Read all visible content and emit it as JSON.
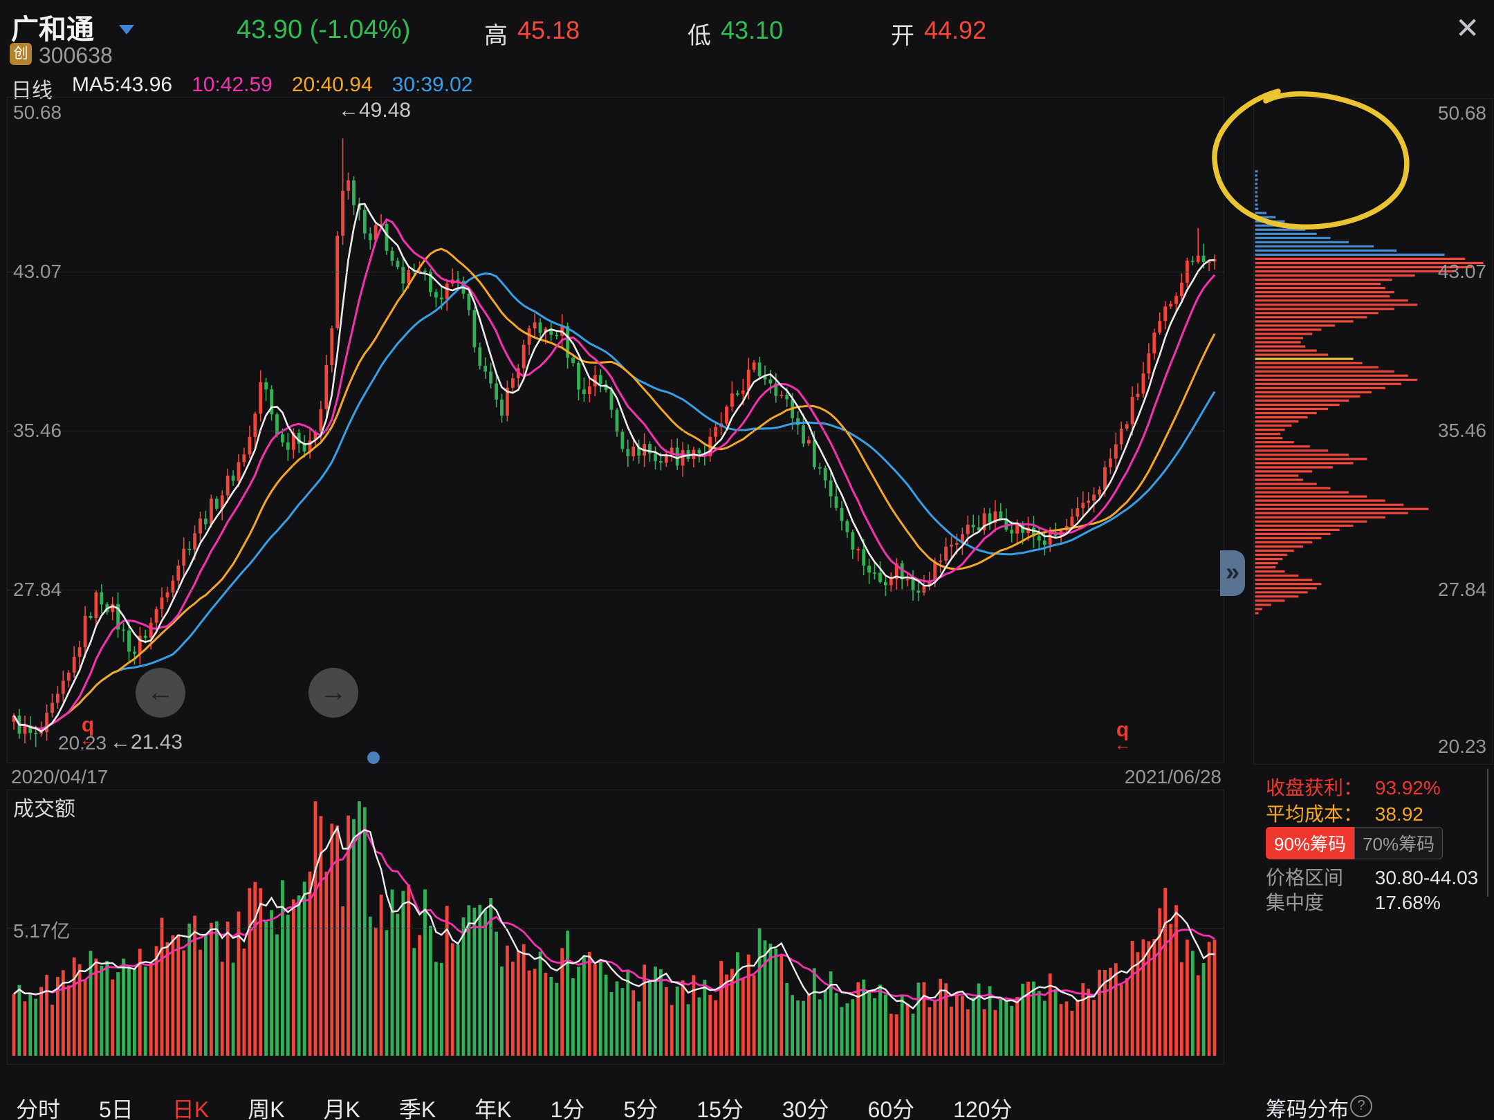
{
  "header": {
    "name": "广和通",
    "market_badge": "创",
    "code": "300638",
    "price": "43.90 (-1.04%)",
    "high_label": "高",
    "high": "45.18",
    "low_label": "低",
    "low": "43.10",
    "open_label": "开",
    "open": "44.92",
    "close_icon": "✕"
  },
  "legend": {
    "period": "日线",
    "ma5": "MA5:43.96",
    "ma10": "10:42.59",
    "ma20": "20:40.94",
    "ma30": "30:39.02"
  },
  "dates": {
    "start": "2020/04/17",
    "end": "2021/06/28"
  },
  "annotations": {
    "peak": "←49.48",
    "start_price": "←21.43",
    "zoom_q": "q",
    "zoom_arrow": "←",
    "nav_left": "←",
    "nav_right": "→",
    "expand": "»"
  },
  "volume_pane": {
    "title": "成交额",
    "gridline_label": "5.17亿"
  },
  "right_stats": {
    "profit_label": "收盘获利：",
    "profit": "93.92%",
    "cost_label": "平均成本：",
    "cost": "38.92",
    "badge90": "90%筹码",
    "badge70": "70%筹码",
    "range_label": "价格区间",
    "range": "30.80-44.03",
    "concentration_label": "集中度",
    "concentration": "17.68%",
    "panel_title": "筹码分布",
    "help": "?"
  },
  "tabs": {
    "items": [
      "分时",
      "5日",
      "日K",
      "周K",
      "月K",
      "季K",
      "年K",
      "1分",
      "5分",
      "15分",
      "30分",
      "60分",
      "120分"
    ],
    "active_index": 2
  },
  "chart_data": {
    "type": "candlestick+volume+chip-distribution",
    "colors": {
      "up": "#f4453a",
      "down": "#31b057",
      "ma5": "#ececec",
      "ma10": "#f531b0",
      "ma20": "#f5a623",
      "ma30": "#35a0e8",
      "chip_red": "#f4473c",
      "chip_blue": "#4a8cd0",
      "chip_yellow": "#e8c238",
      "annotation_yellow": "#eac431"
    },
    "kline": {
      "y_ticks": [
        "50.68",
        "43.07",
        "35.46",
        "27.84",
        "20.23"
      ],
      "ylim": [
        20.23,
        50.68
      ],
      "gridline_values": [
        43.07,
        35.46,
        27.84
      ],
      "num_candles": 220,
      "price_anchors": [
        [
          0,
          21.5
        ],
        [
          0.012,
          20.9
        ],
        [
          0.02,
          20.6
        ],
        [
          0.03,
          21.8
        ],
        [
          0.045,
          23.5
        ],
        [
          0.06,
          26.3
        ],
        [
          0.07,
          27.6
        ],
        [
          0.08,
          27.0
        ],
        [
          0.09,
          25.8
        ],
        [
          0.1,
          24.8
        ],
        [
          0.115,
          26.3
        ],
        [
          0.13,
          28.4
        ],
        [
          0.15,
          30.6
        ],
        [
          0.17,
          32.2
        ],
        [
          0.185,
          33.6
        ],
        [
          0.197,
          35.2
        ],
        [
          0.207,
          38.0
        ],
        [
          0.215,
          36.2
        ],
        [
          0.225,
          34.6
        ],
        [
          0.235,
          35.6
        ],
        [
          0.245,
          34.2
        ],
        [
          0.255,
          36.6
        ],
        [
          0.265,
          40.5
        ],
        [
          0.272,
          46.8
        ],
        [
          0.279,
          47.3
        ],
        [
          0.287,
          45.9
        ],
        [
          0.295,
          44.2
        ],
        [
          0.305,
          45.4
        ],
        [
          0.315,
          43.6
        ],
        [
          0.325,
          42.2
        ],
        [
          0.335,
          43.8
        ],
        [
          0.345,
          42.6
        ],
        [
          0.355,
          41.2
        ],
        [
          0.365,
          42.9
        ],
        [
          0.375,
          41.6
        ],
        [
          0.385,
          39.6
        ],
        [
          0.395,
          37.6
        ],
        [
          0.405,
          36.4
        ],
        [
          0.415,
          37.9
        ],
        [
          0.425,
          39.4
        ],
        [
          0.435,
          40.7
        ],
        [
          0.445,
          39.9
        ],
        [
          0.455,
          40.4
        ],
        [
          0.465,
          38.6
        ],
        [
          0.475,
          37.1
        ],
        [
          0.485,
          38.4
        ],
        [
          0.495,
          36.9
        ],
        [
          0.505,
          35.1
        ],
        [
          0.515,
          34.3
        ],
        [
          0.525,
          34.8
        ],
        [
          0.535,
          33.9
        ],
        [
          0.545,
          34.5
        ],
        [
          0.555,
          34.1
        ],
        [
          0.565,
          34.7
        ],
        [
          0.575,
          34.3
        ],
        [
          0.585,
          35.4
        ],
        [
          0.6,
          37.0
        ],
        [
          0.615,
          38.4
        ],
        [
          0.63,
          38.0
        ],
        [
          0.645,
          36.6
        ],
        [
          0.66,
          34.9
        ],
        [
          0.675,
          33.2
        ],
        [
          0.69,
          31.2
        ],
        [
          0.705,
          29.4
        ],
        [
          0.72,
          28.2
        ],
        [
          0.735,
          28.9
        ],
        [
          0.75,
          27.8
        ],
        [
          0.765,
          28.8
        ],
        [
          0.78,
          30.0
        ],
        [
          0.8,
          31.0
        ],
        [
          0.82,
          31.3
        ],
        [
          0.84,
          30.7
        ],
        [
          0.86,
          30.1
        ],
        [
          0.875,
          30.7
        ],
        [
          0.89,
          31.6
        ],
        [
          0.905,
          33.0
        ],
        [
          0.92,
          35.0
        ],
        [
          0.935,
          37.2
        ],
        [
          0.95,
          39.8
        ],
        [
          0.962,
          41.6
        ],
        [
          0.974,
          43.0
        ],
        [
          0.985,
          44.3
        ],
        [
          0.993,
          43.3
        ],
        [
          1,
          43.9
        ]
      ],
      "spikes": [
        [
          0.272,
          49.48
        ],
        [
          0.985,
          45.18
        ]
      ],
      "dips": [
        [
          0.02,
          20.28
        ],
        [
          0.75,
          27.3
        ]
      ]
    },
    "volume": {
      "anchors": [
        [
          0,
          0.3
        ],
        [
          0.02,
          0.24
        ],
        [
          0.04,
          0.28
        ],
        [
          0.06,
          0.35
        ],
        [
          0.08,
          0.3
        ],
        [
          0.1,
          0.44
        ],
        [
          0.12,
          0.5
        ],
        [
          0.14,
          0.42
        ],
        [
          0.16,
          0.5
        ],
        [
          0.18,
          0.46
        ],
        [
          0.2,
          0.55
        ],
        [
          0.22,
          0.52
        ],
        [
          0.235,
          0.62
        ],
        [
          0.25,
          0.92
        ],
        [
          0.265,
          0.72
        ],
        [
          0.285,
          0.9
        ],
        [
          0.3,
          0.62
        ],
        [
          0.315,
          0.68
        ],
        [
          0.33,
          0.55
        ],
        [
          0.36,
          0.46
        ],
        [
          0.39,
          0.5
        ],
        [
          0.42,
          0.44
        ],
        [
          0.45,
          0.4
        ],
        [
          0.48,
          0.36
        ],
        [
          0.51,
          0.3
        ],
        [
          0.54,
          0.28
        ],
        [
          0.57,
          0.26
        ],
        [
          0.6,
          0.34
        ],
        [
          0.62,
          0.4
        ],
        [
          0.65,
          0.3
        ],
        [
          0.68,
          0.26
        ],
        [
          0.71,
          0.24
        ],
        [
          0.74,
          0.2
        ],
        [
          0.77,
          0.26
        ],
        [
          0.8,
          0.23
        ],
        [
          0.83,
          0.21
        ],
        [
          0.86,
          0.26
        ],
        [
          0.885,
          0.22
        ],
        [
          0.91,
          0.3
        ],
        [
          0.935,
          0.45
        ],
        [
          0.955,
          0.6
        ],
        [
          0.97,
          0.48
        ],
        [
          0.985,
          0.42
        ],
        [
          1,
          0.38
        ]
      ],
      "spikes": [
        [
          0.25,
          1.0
        ],
        [
          0.285,
          0.93
        ],
        [
          0.955,
          0.58
        ]
      ]
    },
    "chips": {
      "bars": [
        [
          47.9,
          0.012,
          "b"
        ],
        [
          47.7,
          0.01,
          "b"
        ],
        [
          47.5,
          0.012,
          "b"
        ],
        [
          47.3,
          0.01,
          "b"
        ],
        [
          47.1,
          0.012,
          "b"
        ],
        [
          46.9,
          0.01,
          "b"
        ],
        [
          46.7,
          0.012,
          "b"
        ],
        [
          46.5,
          0.01,
          "b"
        ],
        [
          46.3,
          0.012,
          "b"
        ],
        [
          46.1,
          0.014,
          "b"
        ],
        [
          45.9,
          0.05,
          "b"
        ],
        [
          45.7,
          0.09,
          "b"
        ],
        [
          45.5,
          0.13,
          "b"
        ],
        [
          45.3,
          0.17,
          "b"
        ],
        [
          45.1,
          0.22,
          "b"
        ],
        [
          44.9,
          0.27,
          "b"
        ],
        [
          44.7,
          0.33,
          "b"
        ],
        [
          44.5,
          0.41,
          "b"
        ],
        [
          44.3,
          0.52,
          "b"
        ],
        [
          44.1,
          0.62,
          "b"
        ],
        [
          43.9,
          0.83,
          "b"
        ],
        [
          43.7,
          0.92,
          "r"
        ],
        [
          43.5,
          1,
          "r"
        ],
        [
          43.3,
          0.95,
          "r"
        ],
        [
          43.1,
          0.87,
          "r"
        ],
        [
          42.9,
          0.7,
          "r"
        ],
        [
          42.7,
          0.6,
          "r"
        ],
        [
          42.5,
          0.55,
          "r"
        ],
        [
          42.3,
          0.57,
          "r"
        ],
        [
          42.1,
          0.61,
          "r"
        ],
        [
          41.9,
          0.59,
          "r"
        ],
        [
          41.7,
          0.67,
          "r"
        ],
        [
          41.5,
          0.71,
          "r"
        ],
        [
          41.3,
          0.61,
          "r"
        ],
        [
          41.1,
          0.54,
          "r"
        ],
        [
          40.9,
          0.49,
          "r"
        ],
        [
          40.7,
          0.43,
          "r"
        ],
        [
          40.5,
          0.35,
          "r"
        ],
        [
          40.3,
          0.29,
          "r"
        ],
        [
          40.1,
          0.25,
          "r"
        ],
        [
          39.9,
          0.21,
          "r"
        ],
        [
          39.7,
          0.2,
          "r"
        ],
        [
          39.5,
          0.22,
          "r"
        ],
        [
          39.3,
          0.27,
          "r"
        ],
        [
          39.1,
          0.32,
          "r"
        ],
        [
          38.9,
          0.43,
          "y"
        ],
        [
          38.7,
          0.47,
          "r"
        ],
        [
          38.5,
          0.54,
          "r"
        ],
        [
          38.3,
          0.61,
          "r"
        ],
        [
          38.1,
          0.67,
          "r"
        ],
        [
          37.9,
          0.71,
          "r"
        ],
        [
          37.7,
          0.64,
          "r"
        ],
        [
          37.5,
          0.57,
          "r"
        ],
        [
          37.3,
          0.51,
          "r"
        ],
        [
          37.1,
          0.46,
          "r"
        ],
        [
          36.9,
          0.41,
          "r"
        ],
        [
          36.7,
          0.37,
          "r"
        ],
        [
          36.5,
          0.32,
          "r"
        ],
        [
          36.3,
          0.27,
          "r"
        ],
        [
          36.1,
          0.23,
          "r"
        ],
        [
          35.9,
          0.19,
          "r"
        ],
        [
          35.7,
          0.16,
          "r"
        ],
        [
          35.5,
          0.13,
          "r"
        ],
        [
          35.3,
          0.11,
          "r"
        ],
        [
          35.1,
          0.12,
          "r"
        ],
        [
          34.9,
          0.17,
          "r"
        ],
        [
          34.7,
          0.24,
          "r"
        ],
        [
          34.5,
          0.32,
          "r"
        ],
        [
          34.3,
          0.41,
          "r"
        ],
        [
          34.1,
          0.49,
          "r"
        ],
        [
          33.9,
          0.43,
          "r"
        ],
        [
          33.7,
          0.34,
          "r"
        ],
        [
          33.5,
          0.25,
          "r"
        ],
        [
          33.3,
          0.19,
          "r"
        ],
        [
          33.1,
          0.21,
          "r"
        ],
        [
          32.9,
          0.27,
          "r"
        ],
        [
          32.7,
          0.33,
          "r"
        ],
        [
          32.5,
          0.41,
          "r"
        ],
        [
          32.3,
          0.49,
          "r"
        ],
        [
          32.1,
          0.57,
          "r"
        ],
        [
          31.9,
          0.65,
          "r"
        ],
        [
          31.7,
          0.76,
          "r"
        ],
        [
          31.5,
          0.67,
          "r"
        ],
        [
          31.3,
          0.57,
          "r"
        ],
        [
          31.1,
          0.49,
          "r"
        ],
        [
          30.9,
          0.43,
          "r"
        ],
        [
          30.7,
          0.37,
          "r"
        ],
        [
          30.5,
          0.33,
          "r"
        ],
        [
          30.3,
          0.29,
          "r"
        ],
        [
          30.1,
          0.25,
          "r"
        ],
        [
          29.9,
          0.21,
          "r"
        ],
        [
          29.7,
          0.17,
          "r"
        ],
        [
          29.5,
          0.14,
          "r"
        ],
        [
          29.3,
          0.12,
          "r"
        ],
        [
          29.1,
          0.1,
          "r"
        ],
        [
          28.9,
          0.09,
          "r"
        ],
        [
          28.7,
          0.13,
          "r"
        ],
        [
          28.5,
          0.19,
          "r"
        ],
        [
          28.3,
          0.25,
          "r"
        ],
        [
          28.1,
          0.29,
          "r"
        ],
        [
          27.9,
          0.27,
          "r"
        ],
        [
          27.7,
          0.23,
          "r"
        ],
        [
          27.5,
          0.19,
          "r"
        ],
        [
          27.3,
          0.13,
          "r"
        ],
        [
          27.1,
          0.07,
          "r"
        ],
        [
          26.9,
          0.03,
          "r"
        ],
        [
          26.7,
          0.015,
          "r"
        ]
      ]
    }
  }
}
